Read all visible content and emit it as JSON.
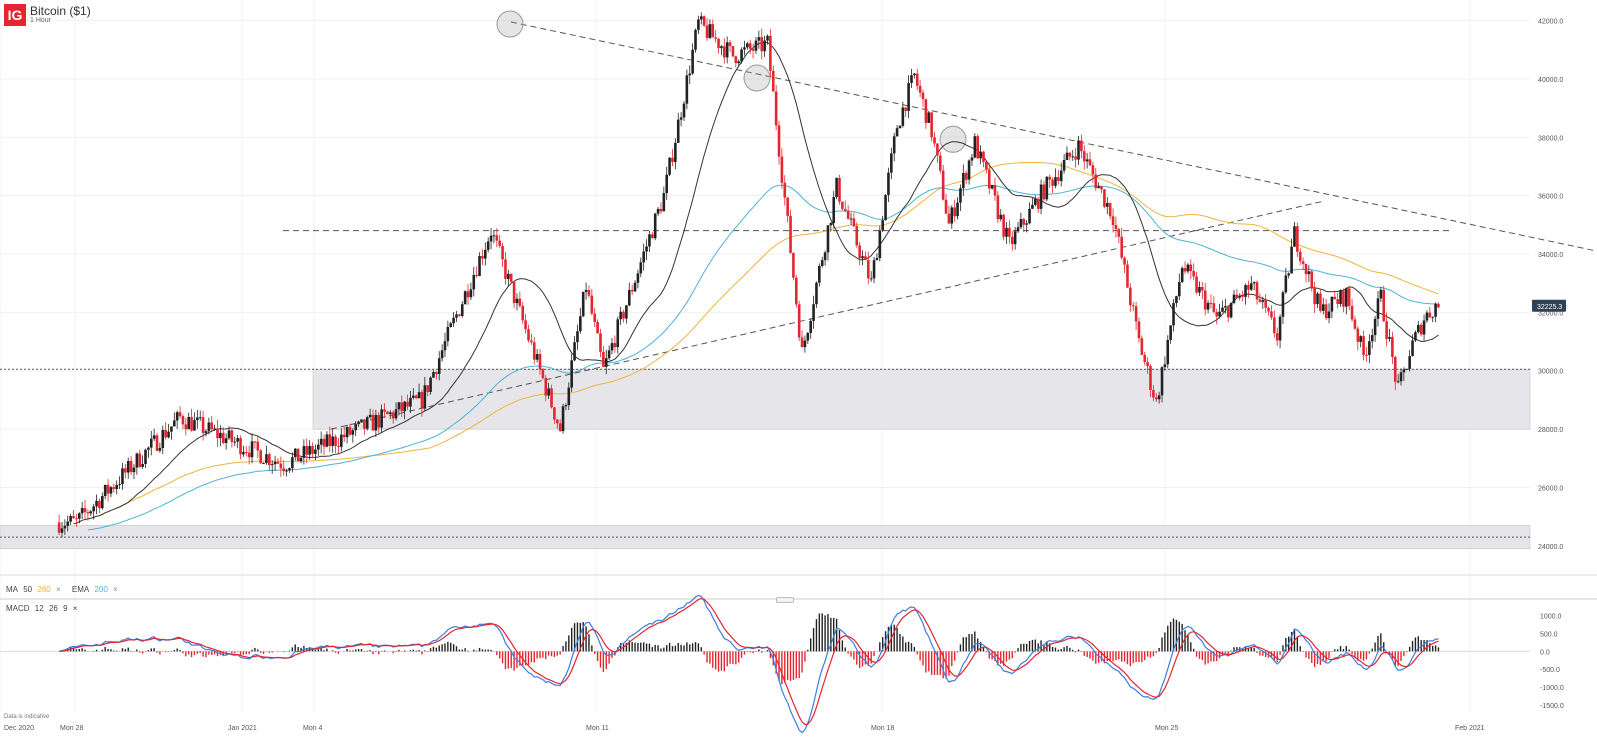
{
  "header": {
    "logo": "IG",
    "title": "Bitcoin ($1)",
    "interval": "1 Hour"
  },
  "indicators": {
    "ma_label": "MA",
    "ma_period": "50",
    "ma2_period": "260",
    "ema_label": "EMA",
    "ema_period": "200",
    "close_symbol": "×",
    "macd_label": "MACD",
    "macd_fast": "12",
    "macd_slow": "26",
    "macd_signal": "9"
  },
  "footer": {
    "disclaimer": "Data is indicative"
  },
  "colors": {
    "up": "#222222",
    "down": "#e3262f",
    "ma50": "#333333",
    "ma260": "#f0b43c",
    "ema200": "#4bb3d6",
    "macd": "#3a7ee0",
    "signal": "#e3262f",
    "zone": "#e6e6ea",
    "price_tag": "#2f4156"
  },
  "chart_data": [
    {
      "type": "candlestick",
      "title": "Bitcoin ($1)",
      "interval": "1 Hour",
      "x_tick_labels": [
        "Dec 2020",
        "Mon 28",
        "Jan 2021",
        "Mon 4",
        "Mon 11",
        "Mon 18",
        "Mon 25",
        "Feb 2021"
      ],
      "y_tick_labels": [
        "42000.0",
        "40000.0",
        "38000.0",
        "36000.0",
        "34000.0",
        "32000.0",
        "30000.0",
        "28000.0",
        "26000.0",
        "24000.0"
      ],
      "ylim": [
        23000,
        42500
      ],
      "last_price": 32225.3,
      "last_price_label": "32225.3",
      "key_points": [
        {
          "date": "Dec 21",
          "price": 24800
        },
        {
          "date": "Dec 24",
          "price": 28400
        },
        {
          "date": "Dec 27",
          "price": 26800
        },
        {
          "date": "Dec 31",
          "price": 29000
        },
        {
          "date": "Jan 2",
          "price": 34800
        },
        {
          "date": "Jan 4",
          "price": 28000
        },
        {
          "date": "Jan 5",
          "price": 32900
        },
        {
          "date": "Jan 5",
          "price": 30000
        },
        {
          "date": "Jan 7",
          "price": 36000
        },
        {
          "date": "Jan 8",
          "price": 41900
        },
        {
          "date": "Jan 9",
          "price": 40800
        },
        {
          "date": "Jan 10",
          "price": 41200
        },
        {
          "date": "Jan 11",
          "price": 30600
        },
        {
          "date": "Jan 12",
          "price": 36300
        },
        {
          "date": "Jan 13",
          "price": 33000
        },
        {
          "date": "Jan 14",
          "price": 38400
        },
        {
          "date": "Jan 14",
          "price": 40100
        },
        {
          "date": "Jan 15",
          "price": 38200
        },
        {
          "date": "Jan 15",
          "price": 35000
        },
        {
          "date": "Jan 16",
          "price": 37800
        },
        {
          "date": "Jan 17",
          "price": 34300
        },
        {
          "date": "Jan 18",
          "price": 36200
        },
        {
          "date": "Jan 19",
          "price": 37700
        },
        {
          "date": "Jan 20",
          "price": 35300
        },
        {
          "date": "Jan 21",
          "price": 31000
        },
        {
          "date": "Jan 21",
          "price": 28900
        },
        {
          "date": "Jan 22",
          "price": 33600
        },
        {
          "date": "Jan 23",
          "price": 31800
        },
        {
          "date": "Jan 24",
          "price": 32900
        },
        {
          "date": "Jan 25",
          "price": 31200
        },
        {
          "date": "Jan 25",
          "price": 34700
        },
        {
          "date": "Jan 26",
          "price": 32000
        },
        {
          "date": "Jan 27",
          "price": 32600
        },
        {
          "date": "Jan 27",
          "price": 30500
        },
        {
          "date": "Jan 28",
          "price": 32500
        },
        {
          "date": "Jan 28",
          "price": 29300
        },
        {
          "date": "Jan 29",
          "price": 30900
        },
        {
          "date": "Jan 29",
          "price": 31800
        },
        {
          "date": "Jan 29",
          "price": 32225.3
        }
      ],
      "horizontal_lines": [
        {
          "style": "dashed",
          "price": 34800
        },
        {
          "style": "dotted",
          "price": 30050
        },
        {
          "style": "dotted",
          "price": 24300
        }
      ],
      "zones": [
        {
          "from": 28000,
          "to": 30050
        },
        {
          "from": 23900,
          "to": 24700
        }
      ],
      "trendlines": [
        {
          "style": "dashed",
          "from": {
            "date": "Jan 8",
            "price": 41950
          },
          "to": {
            "date": "Feb 2",
            "price": 34100
          }
        },
        {
          "style": "dashed",
          "from": {
            "date": "Jan 4",
            "price": 28000
          },
          "to": {
            "date": "Jan 26",
            "price": 35800
          }
        }
      ],
      "highlighted_highs": [
        41950,
        40100,
        38000
      ]
    },
    {
      "type": "macd",
      "title": "MACD 12 26 9",
      "y_tick_labels": [
        "1000.0",
        "500.0",
        "0.0",
        "-500.0",
        "-1000.0",
        "-1500.0"
      ],
      "ylim": [
        -1700,
        1300
      ]
    }
  ]
}
